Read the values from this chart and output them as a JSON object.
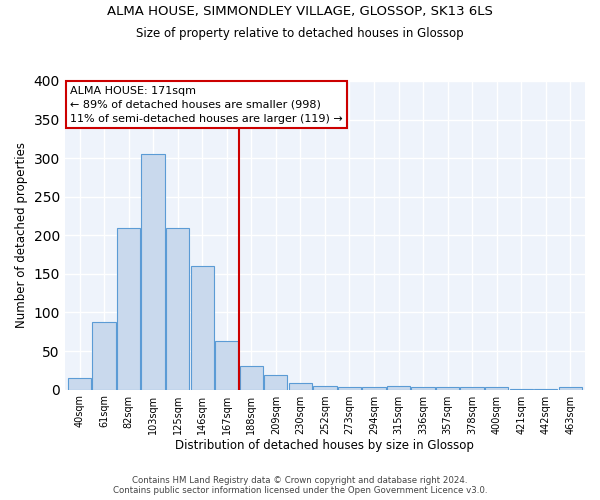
{
  "title1": "ALMA HOUSE, SIMMONDLEY VILLAGE, GLOSSOP, SK13 6LS",
  "title2": "Size of property relative to detached houses in Glossop",
  "xlabel": "Distribution of detached houses by size in Glossop",
  "ylabel": "Number of detached properties",
  "bin_labels": [
    "40sqm",
    "61sqm",
    "82sqm",
    "103sqm",
    "125sqm",
    "146sqm",
    "167sqm",
    "188sqm",
    "209sqm",
    "230sqm",
    "252sqm",
    "273sqm",
    "294sqm",
    "315sqm",
    "336sqm",
    "357sqm",
    "378sqm",
    "400sqm",
    "421sqm",
    "442sqm",
    "463sqm"
  ],
  "bar_heights": [
    15,
    88,
    210,
    305,
    210,
    160,
    63,
    31,
    19,
    9,
    5,
    3,
    3,
    4,
    3,
    3,
    3,
    3,
    1,
    1,
    3
  ],
  "bar_color": "#c9d9ed",
  "bar_edge_color": "#5b9bd5",
  "background_color": "#eef3fb",
  "grid_color": "#ffffff",
  "alma_house_label": "ALMA HOUSE: 171sqm",
  "annotation_line1": "← 89% of detached houses are smaller (998)",
  "annotation_line2": "11% of semi-detached houses are larger (119) →",
  "vline_color": "#cc0000",
  "annotation_box_color": "#ffffff",
  "annotation_box_edge": "#cc0000",
  "ylim": [
    0,
    400
  ],
  "vline_x": 6.5,
  "footer1": "Contains HM Land Registry data © Crown copyright and database right 2024.",
  "footer2": "Contains public sector information licensed under the Open Government Licence v3.0."
}
